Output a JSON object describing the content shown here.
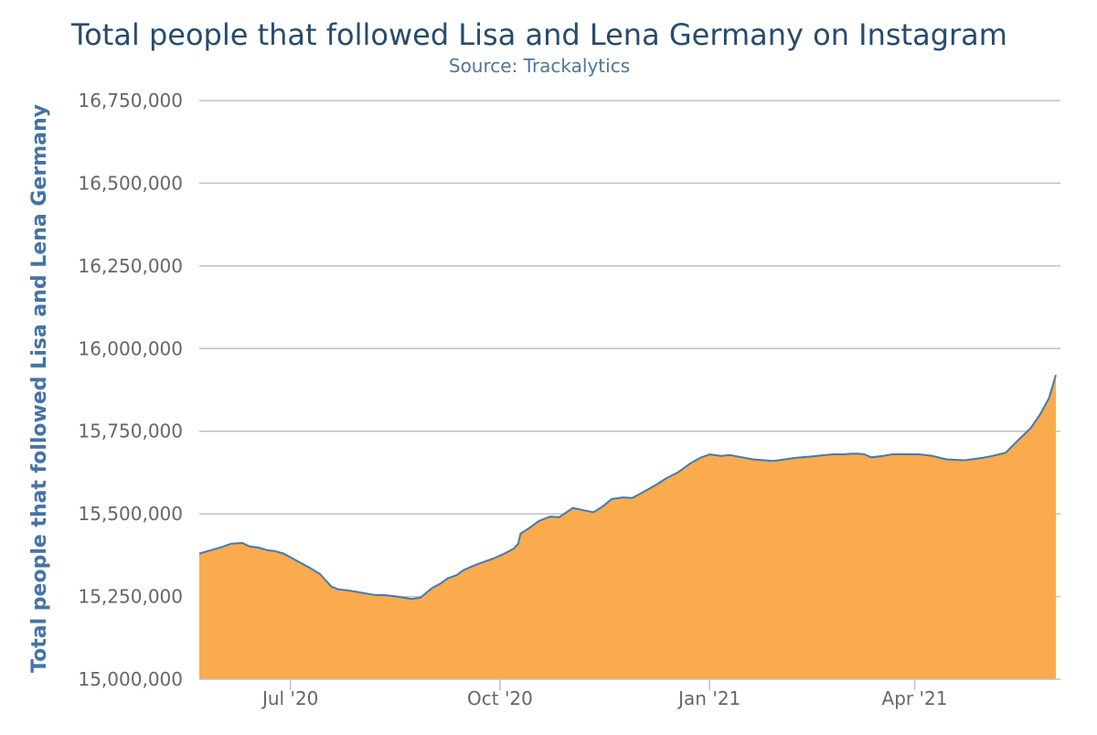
{
  "chart_data": {
    "type": "area",
    "title": "Total people that followed Lisa and Lena Germany on Instagram",
    "subtitle": "Source: Trackalytics",
    "xlabel": "",
    "ylabel": "Total people that followed Lisa and Lena Germany",
    "ylim": [
      15000000,
      16750000
    ],
    "yticks": [
      {
        "value": 15000000,
        "label": "15,000,000"
      },
      {
        "value": 15250000,
        "label": "15,250,000"
      },
      {
        "value": 15500000,
        "label": "15,500,000"
      },
      {
        "value": 15750000,
        "label": "15,750,000"
      },
      {
        "value": 16000000,
        "label": "16,000,000"
      },
      {
        "value": 16250000,
        "label": "16,250,000"
      },
      {
        "value": 16500000,
        "label": "16,500,000"
      },
      {
        "value": 16750000,
        "label": "16,750,000"
      }
    ],
    "xlim": [
      "2020-05-22",
      "2021-06-04"
    ],
    "xticks": [
      {
        "date": "2020-07-01",
        "label": "Jul '20"
      },
      {
        "date": "2020-10-01",
        "label": "Oct '20"
      },
      {
        "date": "2021-01-01",
        "label": "Jan '21"
      },
      {
        "date": "2021-04-01",
        "label": "Apr '21"
      }
    ],
    "grid": true,
    "legend": "none",
    "colors": {
      "area_fill": "#f9ab4d",
      "line": "#3e7ab8",
      "title": "#274b6d",
      "subtitle": "#4d759e",
      "axis_title": "#4572a7",
      "tick_label": "#666666",
      "grid": "#c0c0c0"
    },
    "series": [
      {
        "x": [
          "2020-05-22",
          "2020-05-27",
          "2020-06-01",
          "2020-06-05",
          "2020-06-10",
          "2020-06-13",
          "2020-06-17",
          "2020-06-21",
          "2020-06-24",
          "2020-06-28",
          "2020-07-02",
          "2020-07-06",
          "2020-07-10",
          "2020-07-14",
          "2020-07-19",
          "2020-07-22",
          "2020-07-27",
          "2020-08-01",
          "2020-08-07",
          "2020-08-12",
          "2020-08-17",
          "2020-08-23",
          "2020-08-27",
          "2020-09-01",
          "2020-09-05",
          "2020-09-08",
          "2020-09-12",
          "2020-09-15",
          "2020-09-20",
          "2020-09-24",
          "2020-09-28",
          "2020-10-03",
          "2020-10-07",
          "2020-10-09",
          "2020-10-10",
          "2020-10-14",
          "2020-10-18",
          "2020-10-23",
          "2020-10-27",
          "2020-11-02",
          "2020-11-06",
          "2020-11-11",
          "2020-11-15",
          "2020-11-19",
          "2020-11-24",
          "2020-11-28",
          "2020-12-04",
          "2020-12-09",
          "2020-12-13",
          "2020-12-18",
          "2020-12-21",
          "2020-12-24",
          "2020-12-28",
          "2021-01-01",
          "2021-01-06",
          "2021-01-10",
          "2021-01-20",
          "2021-01-29",
          "2021-02-08",
          "2021-02-17",
          "2021-02-24",
          "2021-03-01",
          "2021-03-04",
          "2021-03-07",
          "2021-03-10",
          "2021-03-13",
          "2021-03-18",
          "2021-03-22",
          "2021-03-27",
          "2021-04-03",
          "2021-04-09",
          "2021-04-15",
          "2021-04-23",
          "2021-05-01",
          "2021-05-05",
          "2021-05-11",
          "2021-05-16",
          "2021-05-22",
          "2021-05-26",
          "2021-05-30",
          "2021-06-02"
        ],
        "y": [
          15380000,
          15390000,
          15400000,
          15410000,
          15412000,
          15402000,
          15398000,
          15390000,
          15388000,
          15380000,
          15365000,
          15350000,
          15335000,
          15318000,
          15280000,
          15272000,
          15268000,
          15262000,
          15255000,
          15254000,
          15250000,
          15243000,
          15246000,
          15275000,
          15290000,
          15305000,
          15315000,
          15330000,
          15345000,
          15355000,
          15365000,
          15380000,
          15395000,
          15410000,
          15440000,
          15458000,
          15478000,
          15492000,
          15490000,
          15518000,
          15512000,
          15505000,
          15522000,
          15545000,
          15550000,
          15548000,
          15570000,
          15590000,
          15608000,
          15625000,
          15640000,
          15655000,
          15670000,
          15680000,
          15675000,
          15678000,
          15665000,
          15660000,
          15670000,
          15675000,
          15680000,
          15680000,
          15682000,
          15682000,
          15680000,
          15671000,
          15675000,
          15680000,
          15681000,
          15680000,
          15675000,
          15665000,
          15662000,
          15670000,
          15675000,
          15685000,
          15720000,
          15760000,
          15800000,
          15850000,
          15920000
        ]
      }
    ]
  }
}
